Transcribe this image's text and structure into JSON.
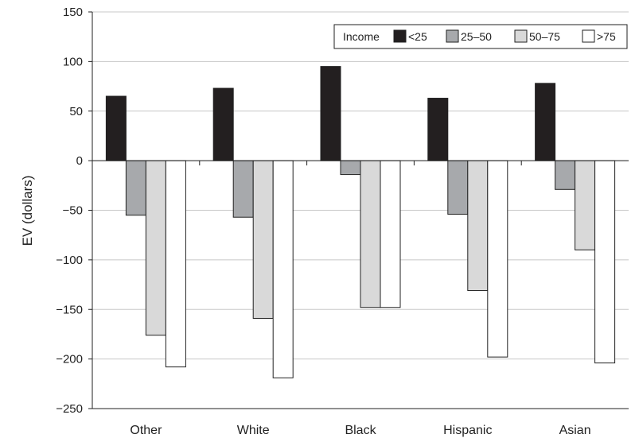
{
  "chart_data": {
    "type": "bar",
    "title": "",
    "xlabel": "",
    "ylabel": "EV (dollars)",
    "ylim": [
      -250,
      150
    ],
    "yticks": [
      150,
      100,
      50,
      0,
      -50,
      -100,
      -150,
      -200,
      -250
    ],
    "ytick_labels": [
      "150",
      "100",
      "50",
      "0",
      "−50",
      "−100",
      "−150",
      "−200",
      "−250"
    ],
    "grid": true,
    "legend_position": "top-right",
    "legend_title": "Income",
    "categories": [
      "Other",
      "White",
      "Black",
      "Hispanic",
      "Asian"
    ],
    "series": [
      {
        "name": "<25",
        "color": "#231f20",
        "values": [
          65,
          73,
          95,
          63,
          78
        ]
      },
      {
        "name": "25–50",
        "color": "#a7a9ac",
        "values": [
          -55,
          -57,
          -14,
          -54,
          -29
        ]
      },
      {
        "name": "50–75",
        "color": "#d9d9d9",
        "values": [
          -176,
          -159,
          -148,
          -131,
          -90
        ]
      },
      {
        "name": ">75",
        "color": "#ffffff",
        "values": [
          -208,
          -219,
          -148,
          -198,
          -204
        ]
      }
    ]
  }
}
